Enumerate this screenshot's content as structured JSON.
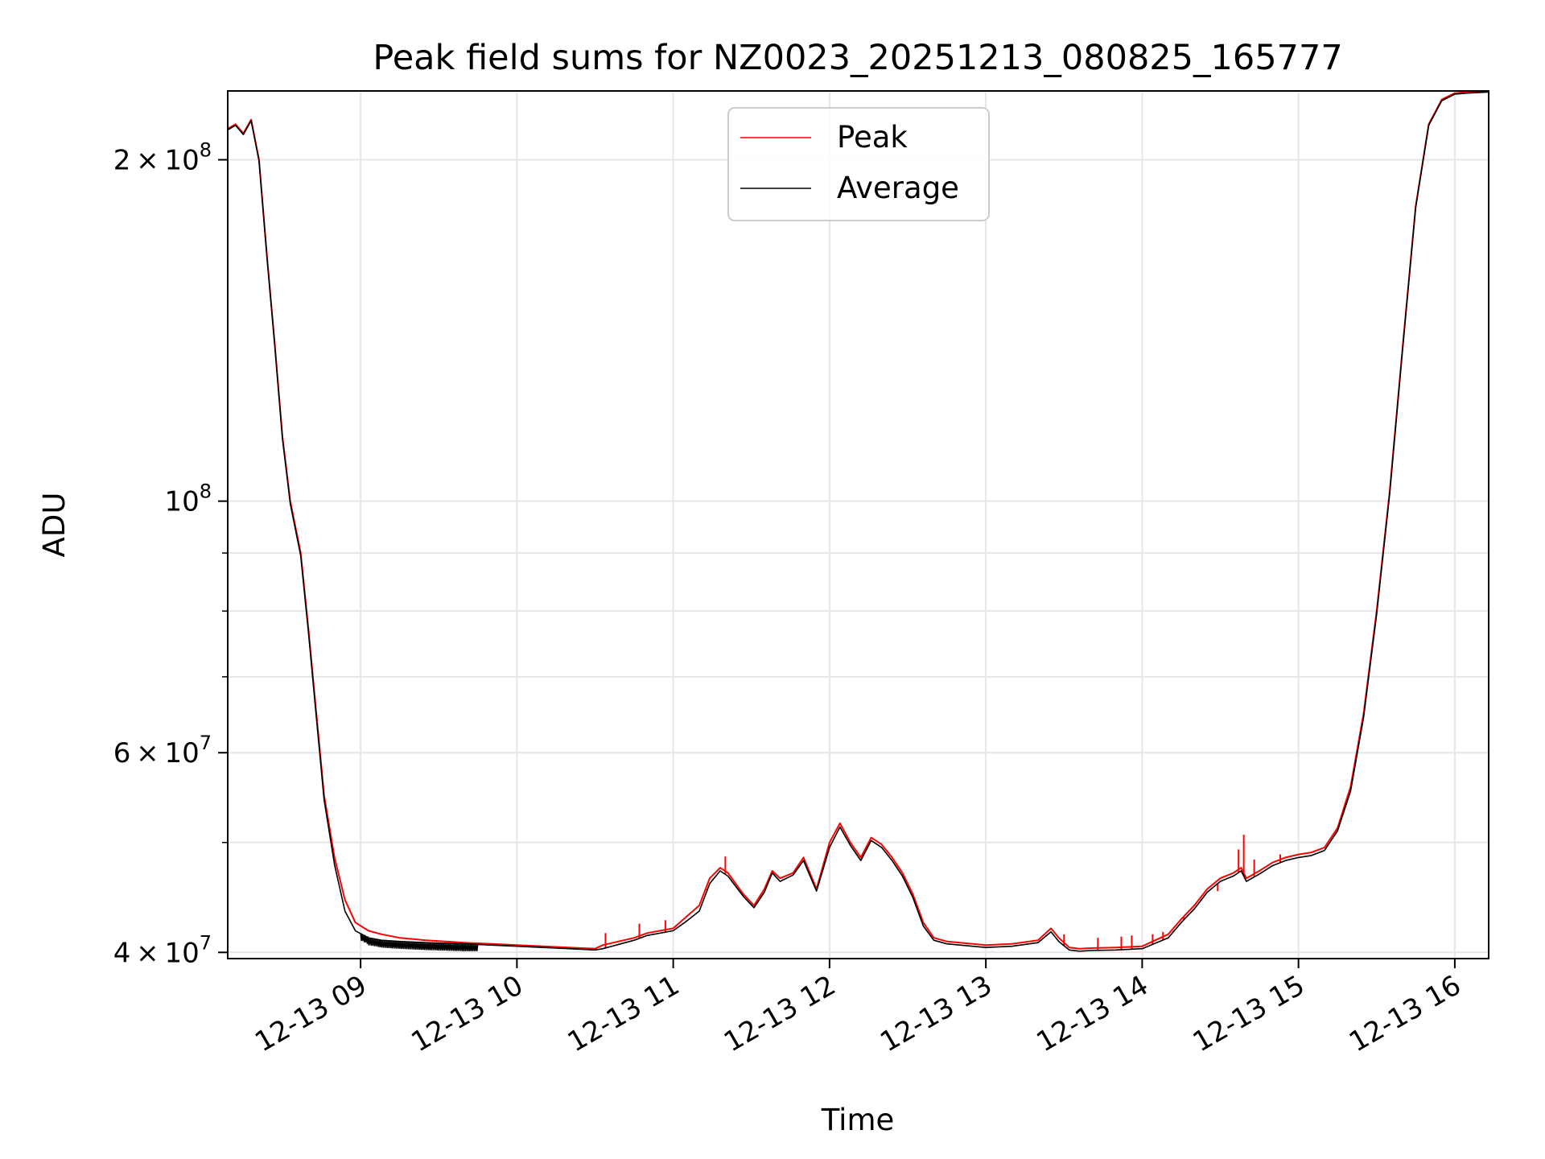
{
  "chart_data": {
    "type": "line",
    "title": "Peak field sums for NZ0023_20251213_080825_165777",
    "xlabel": "Time",
    "ylabel": "ADU",
    "x_axis": "time",
    "y_scale": "log",
    "xlim": [
      "2025-12-13 08:09",
      "2025-12-13 16:13"
    ],
    "ylim": [
      39500000,
      230000000
    ],
    "grid": true,
    "legend_position": "top-center",
    "x_ticks": [
      {
        "t": "2025-12-13 09:00",
        "label": "12-13 09"
      },
      {
        "t": "2025-12-13 10:00",
        "label": "12-13 10"
      },
      {
        "t": "2025-12-13 11:00",
        "label": "12-13 11"
      },
      {
        "t": "2025-12-13 12:00",
        "label": "12-13 12"
      },
      {
        "t": "2025-12-13 13:00",
        "label": "12-13 13"
      },
      {
        "t": "2025-12-13 14:00",
        "label": "12-13 14"
      },
      {
        "t": "2025-12-13 15:00",
        "label": "12-13 15"
      },
      {
        "t": "2025-12-13 16:00",
        "label": "12-13 16"
      }
    ],
    "y_ticks": [
      {
        "v": 40000000,
        "base": "4",
        "exp": "7"
      },
      {
        "v": 60000000,
        "base": "6",
        "exp": "7"
      },
      {
        "v": 100000000,
        "base": "",
        "exp": "8"
      },
      {
        "v": 200000000,
        "base": "2",
        "exp": "8"
      }
    ],
    "y_minor_ticks": [
      50000000,
      70000000,
      80000000,
      90000000
    ],
    "series": [
      {
        "name": "Peak",
        "color": "#ff0000",
        "x": [
          "2025-12-13 08:09",
          "2025-12-13 08:12",
          "2025-12-13 08:15",
          "2025-12-13 08:18",
          "2025-12-13 08:21",
          "2025-12-13 08:24",
          "2025-12-13 08:27",
          "2025-12-13 08:30",
          "2025-12-13 08:33",
          "2025-12-13 08:37",
          "2025-12-13 08:40",
          "2025-12-13 08:43",
          "2025-12-13 08:46",
          "2025-12-13 08:50",
          "2025-12-13 08:54",
          "2025-12-13 08:58",
          "2025-12-13 09:03",
          "2025-12-13 09:08",
          "2025-12-13 09:15",
          "2025-12-13 09:25",
          "2025-12-13 09:40",
          "2025-12-13 10:00",
          "2025-12-13 10:20",
          "2025-12-13 10:30",
          "2025-12-13 10:33",
          "2025-12-13 10:45",
          "2025-12-13 10:50",
          "2025-12-13 11:00",
          "2025-12-13 11:05",
          "2025-12-13 11:10",
          "2025-12-13 11:14",
          "2025-12-13 11:18",
          "2025-12-13 11:21",
          "2025-12-13 11:27",
          "2025-12-13 11:31",
          "2025-12-13 11:35",
          "2025-12-13 11:38",
          "2025-12-13 11:41",
          "2025-12-13 11:46",
          "2025-12-13 11:50",
          "2025-12-13 11:55",
          "2025-12-13 12:00",
          "2025-12-13 12:04",
          "2025-12-13 12:08",
          "2025-12-13 12:12",
          "2025-12-13 12:16",
          "2025-12-13 12:20",
          "2025-12-13 12:24",
          "2025-12-13 12:28",
          "2025-12-13 12:32",
          "2025-12-13 12:36",
          "2025-12-13 12:40",
          "2025-12-13 12:45",
          "2025-12-13 12:50",
          "2025-12-13 12:55",
          "2025-12-13 13:00",
          "2025-12-13 13:10",
          "2025-12-13 13:20",
          "2025-12-13 13:25",
          "2025-12-13 13:28",
          "2025-12-13 13:32",
          "2025-12-13 13:36",
          "2025-12-13 13:40",
          "2025-12-13 13:50",
          "2025-12-13 14:00",
          "2025-12-13 14:10",
          "2025-12-13 14:15",
          "2025-12-13 14:20",
          "2025-12-13 14:25",
          "2025-12-13 14:30",
          "2025-12-13 14:35",
          "2025-12-13 14:38",
          "2025-12-13 14:40",
          "2025-12-13 14:45",
          "2025-12-13 14:50",
          "2025-12-13 14:55",
          "2025-12-13 15:00",
          "2025-12-13 15:05",
          "2025-12-13 15:10",
          "2025-12-13 15:15",
          "2025-12-13 15:20",
          "2025-12-13 15:25",
          "2025-12-13 15:30",
          "2025-12-13 15:35",
          "2025-12-13 15:40",
          "2025-12-13 15:45",
          "2025-12-13 15:50",
          "2025-12-13 15:55",
          "2025-12-13 16:00",
          "2025-12-13 16:05",
          "2025-12-13 16:13"
        ],
        "y": [
          213000000,
          215000000,
          211000000,
          217000000,
          200000000,
          165000000,
          138000000,
          114000000,
          100000000,
          90000000,
          77000000,
          65000000,
          55000000,
          48500000,
          44500000,
          42500000,
          41800000,
          41500000,
          41200000,
          41000000,
          40800000,
          40600000,
          40400000,
          40300000,
          40600000,
          41200000,
          41600000,
          42000000,
          43000000,
          44000000,
          46500000,
          47500000,
          47000000,
          45000000,
          44000000,
          45500000,
          47200000,
          46500000,
          47000000,
          48500000,
          45500000,
          50000000,
          52000000,
          50000000,
          48500000,
          50500000,
          49800000,
          48500000,
          47000000,
          45000000,
          42500000,
          41200000,
          40900000,
          40800000,
          40700000,
          40600000,
          40700000,
          41000000,
          42000000,
          41200000,
          40400000,
          40300000,
          40350000,
          40400000,
          40500000,
          41500000,
          42800000,
          44000000,
          45500000,
          46500000,
          47000000,
          47500000,
          46500000,
          47200000,
          48000000,
          48500000,
          48800000,
          49000000,
          49500000,
          51500000,
          56000000,
          65000000,
          80000000,
          102000000,
          137000000,
          182000000,
          215000000,
          226000000,
          229000000,
          229500000,
          230000000
        ],
        "spikes": [
          {
            "x": "2025-12-13 10:34",
            "y": 41600000
          },
          {
            "x": "2025-12-13 10:47",
            "y": 42400000
          },
          {
            "x": "2025-12-13 10:57",
            "y": 42700000
          },
          {
            "x": "2025-12-13 11:13",
            "y": 45500000
          },
          {
            "x": "2025-12-13 11:20",
            "y": 48600000
          },
          {
            "x": "2025-12-13 13:30",
            "y": 41500000
          },
          {
            "x": "2025-12-13 13:43",
            "y": 41200000
          },
          {
            "x": "2025-12-13 13:52",
            "y": 41300000
          },
          {
            "x": "2025-12-13 13:56",
            "y": 41400000
          },
          {
            "x": "2025-12-13 14:04",
            "y": 41500000
          },
          {
            "x": "2025-12-13 14:08",
            "y": 41700000
          },
          {
            "x": "2025-12-13 14:16",
            "y": 43000000
          },
          {
            "x": "2025-12-13 14:29",
            "y": 45300000
          },
          {
            "x": "2025-12-13 14:37",
            "y": 49300000
          },
          {
            "x": "2025-12-13 14:39",
            "y": 50800000
          },
          {
            "x": "2025-12-13 14:43",
            "y": 48300000
          },
          {
            "x": "2025-12-13 14:53",
            "y": 48800000
          }
        ]
      },
      {
        "name": "Average",
        "color": "#000000",
        "x": [
          "2025-12-13 08:09",
          "2025-12-13 08:12",
          "2025-12-13 08:15",
          "2025-12-13 08:18",
          "2025-12-13 08:21",
          "2025-12-13 08:24",
          "2025-12-13 08:27",
          "2025-12-13 08:30",
          "2025-12-13 08:33",
          "2025-12-13 08:37",
          "2025-12-13 08:40",
          "2025-12-13 08:43",
          "2025-12-13 08:46",
          "2025-12-13 08:50",
          "2025-12-13 08:54",
          "2025-12-13 08:58",
          "2025-12-13 09:03",
          "2025-12-13 09:08",
          "2025-12-13 09:15",
          "2025-12-13 09:25",
          "2025-12-13 09:40",
          "2025-12-13 10:00",
          "2025-12-13 10:20",
          "2025-12-13 10:30",
          "2025-12-13 10:33",
          "2025-12-13 10:45",
          "2025-12-13 10:50",
          "2025-12-13 11:00",
          "2025-12-13 11:05",
          "2025-12-13 11:10",
          "2025-12-13 11:14",
          "2025-12-13 11:18",
          "2025-12-13 11:21",
          "2025-12-13 11:27",
          "2025-12-13 11:31",
          "2025-12-13 11:35",
          "2025-12-13 11:38",
          "2025-12-13 11:41",
          "2025-12-13 11:46",
          "2025-12-13 11:50",
          "2025-12-13 11:55",
          "2025-12-13 12:00",
          "2025-12-13 12:04",
          "2025-12-13 12:08",
          "2025-12-13 12:12",
          "2025-12-13 12:16",
          "2025-12-13 12:20",
          "2025-12-13 12:24",
          "2025-12-13 12:28",
          "2025-12-13 12:32",
          "2025-12-13 12:36",
          "2025-12-13 12:40",
          "2025-12-13 12:45",
          "2025-12-13 12:50",
          "2025-12-13 12:55",
          "2025-12-13 13:00",
          "2025-12-13 13:10",
          "2025-12-13 13:20",
          "2025-12-13 13:25",
          "2025-12-13 13:28",
          "2025-12-13 13:32",
          "2025-12-13 13:36",
          "2025-12-13 13:40",
          "2025-12-13 13:50",
          "2025-12-13 14:00",
          "2025-12-13 14:10",
          "2025-12-13 14:15",
          "2025-12-13 14:20",
          "2025-12-13 14:25",
          "2025-12-13 14:30",
          "2025-12-13 14:35",
          "2025-12-13 14:38",
          "2025-12-13 14:40",
          "2025-12-13 14:45",
          "2025-12-13 14:50",
          "2025-12-13 14:55",
          "2025-12-13 15:00",
          "2025-12-13 15:05",
          "2025-12-13 15:10",
          "2025-12-13 15:15",
          "2025-12-13 15:20",
          "2025-12-13 15:25",
          "2025-12-13 15:30",
          "2025-12-13 15:35",
          "2025-12-13 15:40",
          "2025-12-13 15:45",
          "2025-12-13 15:50",
          "2025-12-13 15:55",
          "2025-12-13 16:00",
          "2025-12-13 16:05",
          "2025-12-13 16:13"
        ],
        "y": [
          212500000,
          214500000,
          210500000,
          216500000,
          199500000,
          164500000,
          137500000,
          113500000,
          99500000,
          89500000,
          76500000,
          64500000,
          54500000,
          47800000,
          43500000,
          41800000,
          41200000,
          41000000,
          40900000,
          40800000,
          40700000,
          40500000,
          40300000,
          40200000,
          40300000,
          41000000,
          41400000,
          41800000,
          42600000,
          43500000,
          46000000,
          47200000,
          46700000,
          44800000,
          43800000,
          45200000,
          47000000,
          46200000,
          46800000,
          48200000,
          45300000,
          49500000,
          51600000,
          49700000,
          48200000,
          50200000,
          49500000,
          48200000,
          46700000,
          44700000,
          42200000,
          41000000,
          40700000,
          40600000,
          40500000,
          40400000,
          40500000,
          40800000,
          41700000,
          40900000,
          40200000,
          40100000,
          40150000,
          40200000,
          40300000,
          41200000,
          42500000,
          43700000,
          45200000,
          46200000,
          46700000,
          47200000,
          46200000,
          46900000,
          47700000,
          48200000,
          48500000,
          48700000,
          49200000,
          51200000,
          55500000,
          64500000,
          79500000,
          101500000,
          136500000,
          181500000,
          214500000,
          225500000,
          228500000,
          229000000,
          229500000
        ],
        "noise": {
          "from": "2025-12-13 09:00",
          "to": "2025-12-13 09:45",
          "low": 40100000
        }
      }
    ]
  }
}
